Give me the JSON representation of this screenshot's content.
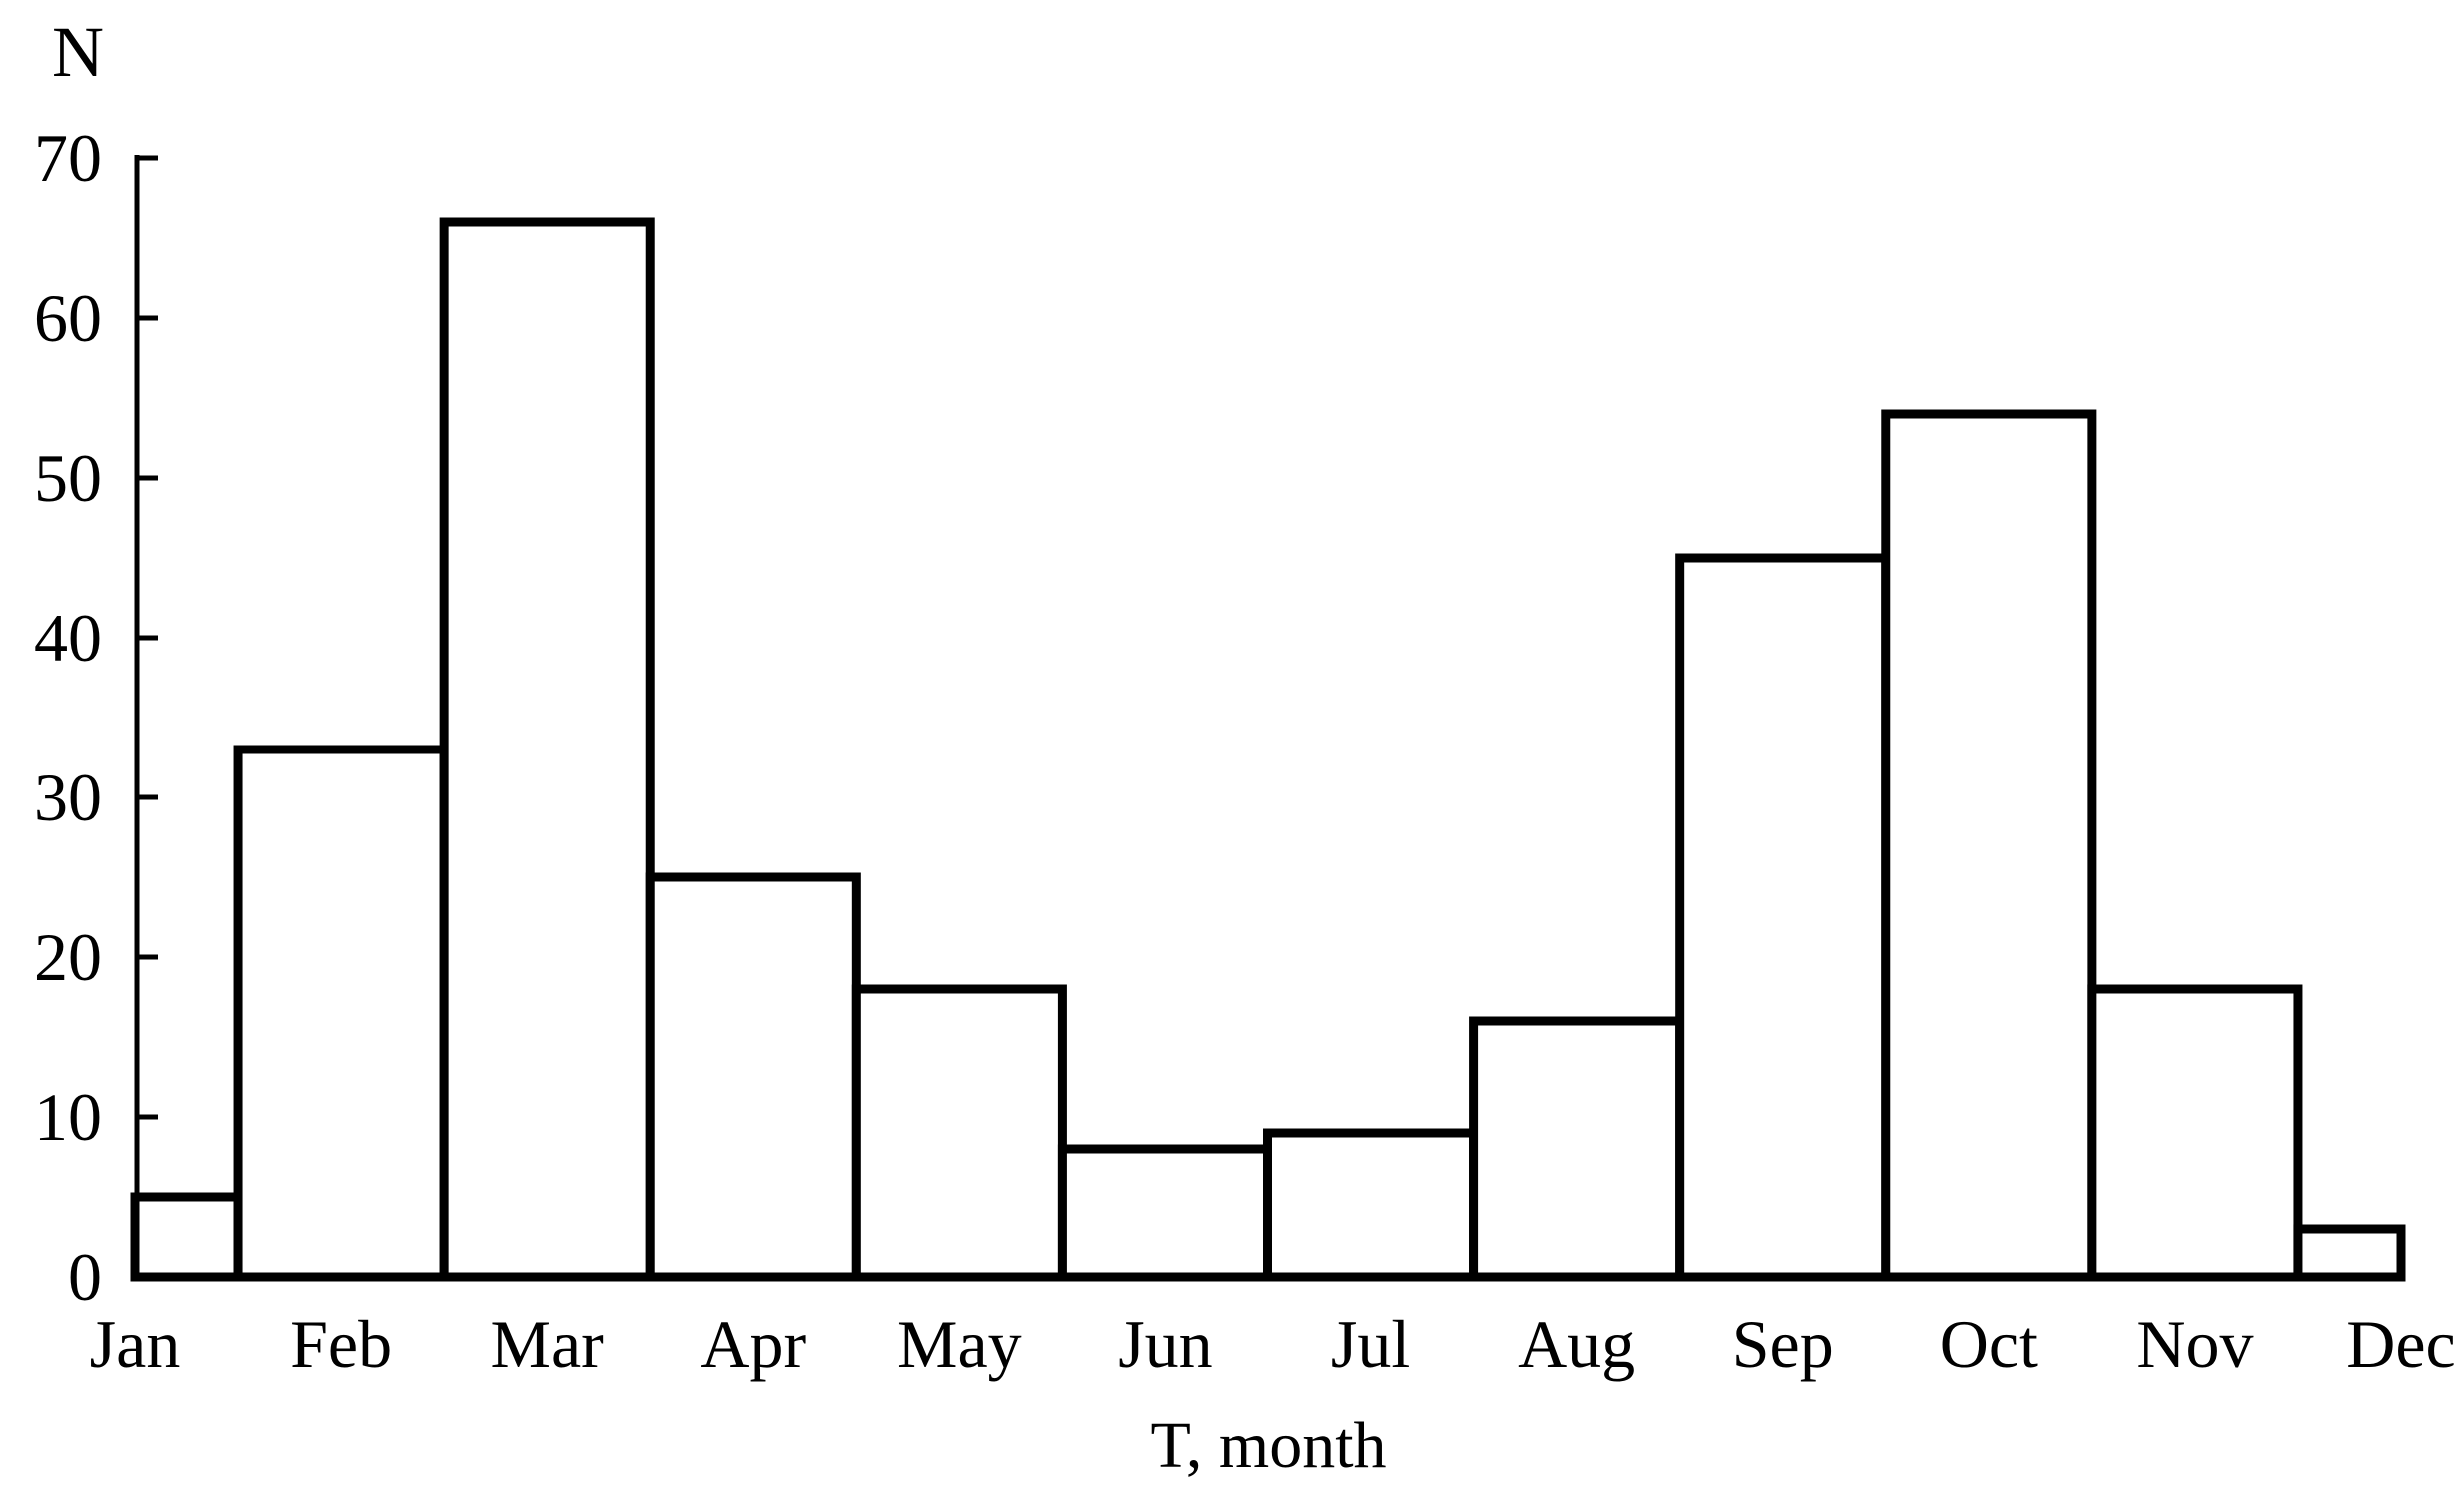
{
  "chart_data": {
    "type": "bar",
    "subtype": "histogram",
    "title": "",
    "categories": [
      "Jan",
      "Feb",
      "Mar",
      "Apr",
      "May",
      "Jun",
      "Jul",
      "Aug",
      "Sep",
      "Oct",
      "Nov",
      "Dec"
    ],
    "values": [
      5,
      33,
      66,
      25,
      18,
      8,
      9,
      16,
      45,
      54,
      18,
      3
    ],
    "xlabel": "T, month",
    "ylabel": "N",
    "ylim": [
      0,
      70
    ],
    "yticks": [
      0,
      10,
      20,
      30,
      40,
      50,
      60,
      70
    ],
    "ytick_labels": [
      "0",
      "10",
      "20",
      "30",
      "40",
      "50",
      "60",
      "70"
    ],
    "grid": false,
    "legend": "none",
    "bar_gap": 0,
    "first_last_bars_half_width": true,
    "ticks_point_inward": true,
    "colors": {
      "background": "#ffffff",
      "bar_fill": "#ffffff",
      "bar_stroke": "#000000",
      "axis": "#000000",
      "text": "#000000"
    }
  }
}
